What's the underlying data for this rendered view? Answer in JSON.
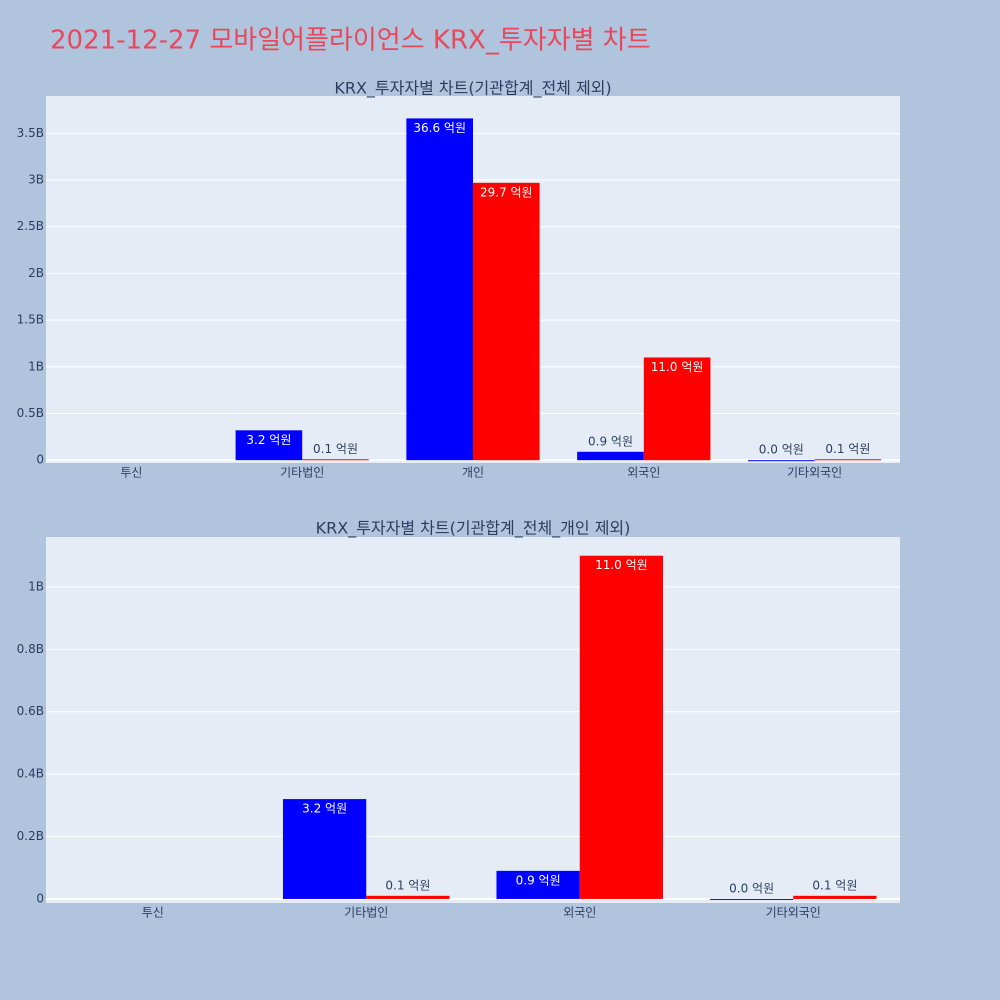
{
  "title": "2021-12-27 모바일어플라이언스 KRX_투자자별 차트",
  "chart_data": [
    {
      "type": "bar",
      "title": "KRX_투자자별 차트(기관합계_전체 제외)",
      "categories": [
        "투신",
        "기타법인",
        "개인",
        "외국인",
        "기타외국인"
      ],
      "series": [
        {
          "color": "#0000ff",
          "values": [
            null,
            320000000,
            3660000000,
            90000000,
            0
          ],
          "value_labels": [
            null,
            "3.2 억원",
            "36.6 억원",
            "0.9 억원",
            "0.0 억원"
          ]
        },
        {
          "color": "#ff0000",
          "values": [
            null,
            10000000,
            2970000000,
            1100000000,
            10000000
          ],
          "value_labels": [
            null,
            "0.1 억원",
            "29.7 억원",
            "11.0 억원",
            "0.1 억원"
          ]
        }
      ],
      "ylim": [
        -30000000,
        3900000000
      ],
      "yticks": [
        0,
        {
          "value": 500000000,
          "label": "0.5B"
        },
        {
          "value": 1000000000,
          "label": "1B"
        },
        {
          "value": 1500000000,
          "label": "1.5B"
        },
        {
          "value": 2000000000,
          "label": "2B"
        },
        {
          "value": 2500000000,
          "label": "2.5B"
        },
        {
          "value": 3000000000,
          "label": "3B"
        },
        {
          "value": 3500000000,
          "label": "3.5B"
        }
      ],
      "grid": true
    },
    {
      "type": "bar",
      "title": "KRX_투자자별 차트(기관합계_전체_개인 제외)",
      "categories": [
        "투신",
        "기타법인",
        "외국인",
        "기타외국인"
      ],
      "series": [
        {
          "color": "#0000ff",
          "values": [
            null,
            320000000,
            90000000,
            0
          ],
          "value_labels": [
            null,
            "3.2 억원",
            "0.9 억원",
            "0.0 억원"
          ]
        },
        {
          "color": "#ff0000",
          "values": [
            null,
            10000000,
            1100000000,
            10000000
          ],
          "value_labels": [
            null,
            "0.1 억원",
            "11.0 억원",
            "0.1 억원"
          ]
        }
      ],
      "ylim": [
        -13000000,
        1160000000
      ],
      "yticks": [
        0,
        {
          "value": 200000000,
          "label": "0.2B"
        },
        {
          "value": 400000000,
          "label": "0.4B"
        },
        {
          "value": 600000000,
          "label": "0.6B"
        },
        {
          "value": 800000000,
          "label": "0.8B"
        },
        {
          "value": 1000000000,
          "label": "1B"
        }
      ],
      "grid": true
    }
  ]
}
